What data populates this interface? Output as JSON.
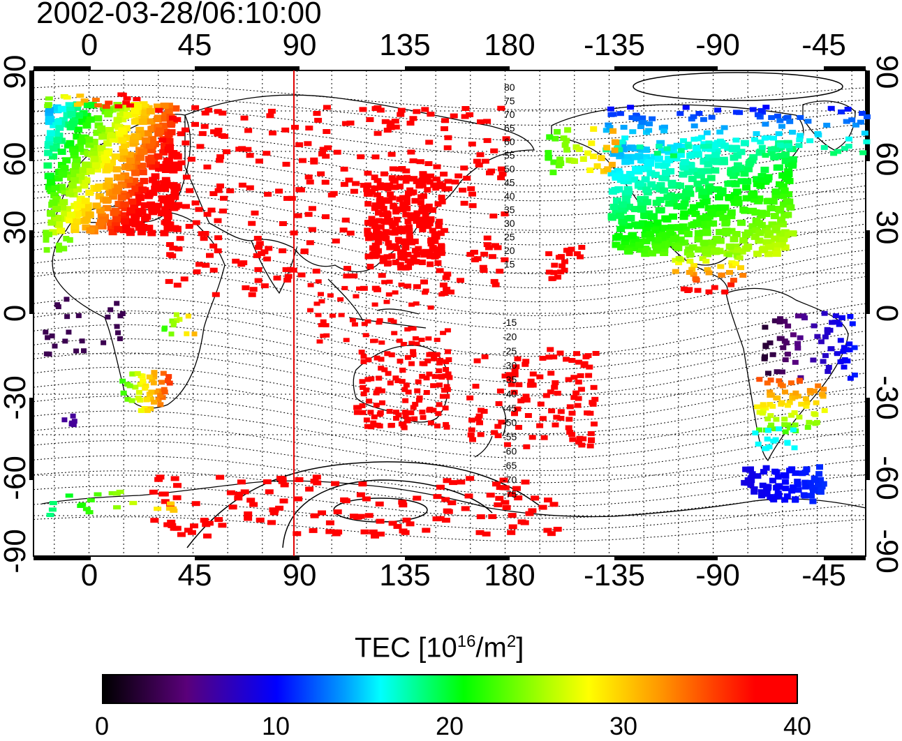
{
  "title": "2002-03-28/06:10:00",
  "map": {
    "x_ticks": [
      "0",
      "45",
      "90",
      "135",
      "180",
      "-135",
      "-90",
      "-45"
    ],
    "y_ticks": [
      "90",
      "60",
      "30",
      "0",
      "-30",
      "-60",
      "-90"
    ],
    "meridian_marker_lon": 88,
    "lat_contour_labels_north": [
      "80",
      "75",
      "70",
      "65",
      "60",
      "55",
      "50",
      "45",
      "40",
      "35",
      "30",
      "25",
      "20",
      "15"
    ],
    "lat_contour_labels_south": [
      "-15",
      "-20",
      "-25",
      "-30",
      "-35",
      "-40",
      "-45",
      "-50",
      "-55",
      "-60",
      "-65",
      "-70",
      "-75"
    ],
    "grid": "dotted",
    "features": [
      "coastlines",
      "geomagnetic-latitude-contours",
      "tec-measurement-cells"
    ]
  },
  "colorbar": {
    "title_main": "TEC  [10",
    "title_exp": "16",
    "title_unit": "/m",
    "title_exp2": "2",
    "title_close": "]",
    "min": 0,
    "max": 40,
    "labels": [
      "0",
      "10",
      "20",
      "30",
      "40"
    ],
    "colors": [
      "#000000",
      "#5a007a",
      "#0000ff",
      "#00ffff",
      "#00ff00",
      "#ffff00",
      "#ff9a00",
      "#ff0000"
    ]
  }
}
